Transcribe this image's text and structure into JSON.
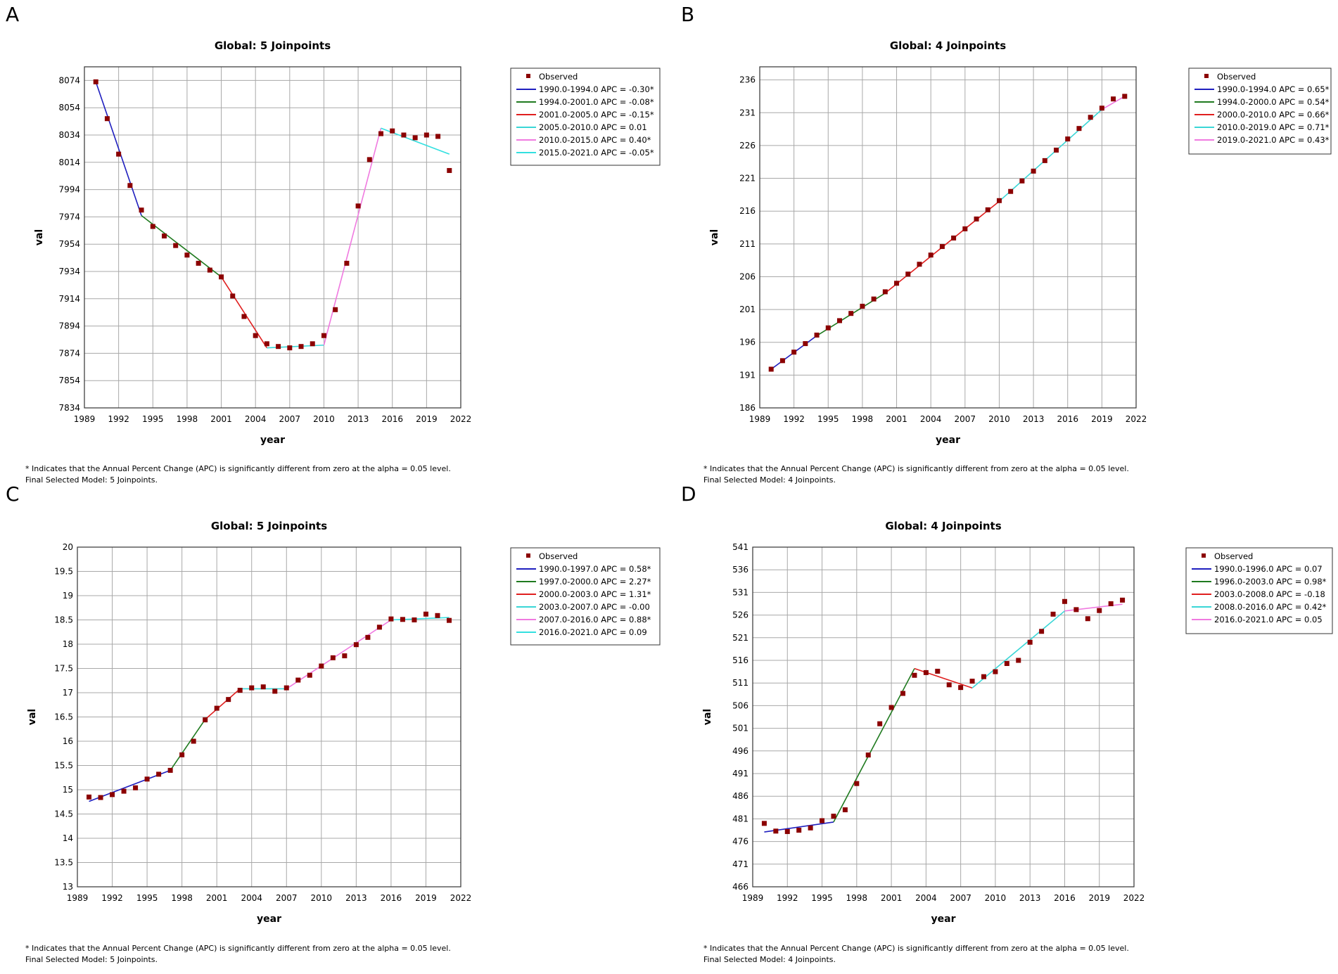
{
  "footnote": {
    "line1": "* Indicates that the Annual Percent Change (APC) is significantly different from zero at the alpha = 0.05 level.",
    "line1_short": "* Indicates that the Annual Percent Change (APC) is significantly different from zero at the alpha = 0.05 level."
  },
  "colors": {
    "observed": "#8b0000",
    "seg1": "#1f1fbf",
    "seg2": "#1f7a1f",
    "seg3": "#e01f1f",
    "seg4": "#3ad6d6",
    "seg5": "#f07ae0",
    "seg6": "#33e0e0",
    "grid": "#a8a8a8",
    "frame": "#333333"
  },
  "chart_data": [
    {
      "panel": "A",
      "type": "line",
      "title": "Global: 5 Joinpoints",
      "xlabel": "year",
      "ylabel": "val",
      "xlim": [
        1989,
        2022
      ],
      "xticks": [
        1989,
        1992,
        1995,
        1998,
        2001,
        2004,
        2007,
        2010,
        2013,
        2016,
        2019,
        2022
      ],
      "ylim": [
        7834,
        8084
      ],
      "yticks": [
        7834,
        7854,
        7874,
        7894,
        7914,
        7934,
        7954,
        7974,
        7994,
        8014,
        8034,
        8054,
        8074
      ],
      "ytick_labels": [
        "7834",
        "7854",
        "7874",
        "7894",
        "7914",
        "7934",
        "7954",
        "7974",
        "7994",
        "8014",
        "8034",
        "8054",
        "8074"
      ],
      "legend_observed": "Observed",
      "legend": [
        "1990.0-1994.0 APC  =  -0.30*",
        "1994.0-2001.0 APC  =  -0.08*",
        "2001.0-2005.0 APC  =  -0.15*",
        "2005.0-2010.0 APC  =  0.01",
        "2010.0-2015.0 APC  =  0.40*",
        "2015.0-2021.0 APC  =  -0.05*"
      ],
      "years": [
        1990,
        1991,
        1992,
        1993,
        1994,
        1995,
        1996,
        1997,
        1998,
        1999,
        2000,
        2001,
        2002,
        2003,
        2004,
        2005,
        2006,
        2007,
        2008,
        2009,
        2010,
        2011,
        2012,
        2013,
        2014,
        2015,
        2016,
        2017,
        2018,
        2019,
        2020,
        2021
      ],
      "observed": [
        8073,
        8046,
        8020,
        7997,
        7979,
        7967,
        7960,
        7953,
        7946,
        7940,
        7935,
        7930,
        7916,
        7901,
        7887,
        7881,
        7879,
        7878,
        7879,
        7881,
        7887,
        7906,
        7940,
        7982,
        8016,
        8035,
        8037,
        8034,
        8032,
        8034,
        8033,
        8008
      ],
      "segments": [
        [
          [
            1990,
            8073
          ],
          [
            1994,
            7975
          ]
        ],
        [
          [
            1994,
            7975
          ],
          [
            2001,
            7930
          ]
        ],
        [
          [
            2001,
            7930
          ],
          [
            2005,
            7878
          ]
        ],
        [
          [
            2005,
            7878
          ],
          [
            2010,
            7880
          ]
        ],
        [
          [
            2010,
            7880
          ],
          [
            2015,
            8039
          ]
        ],
        [
          [
            2015,
            8039
          ],
          [
            2021,
            8020
          ]
        ]
      ],
      "footnote_model": "Final Selected Model: 5 Joinpoints."
    },
    {
      "panel": "B",
      "type": "line",
      "title": "Global: 4 Joinpoints",
      "xlabel": "year",
      "ylabel": "val",
      "xlim": [
        1989,
        2022
      ],
      "xticks": [
        1989,
        1992,
        1995,
        1998,
        2001,
        2004,
        2007,
        2010,
        2013,
        2016,
        2019,
        2022
      ],
      "ylim": [
        186,
        238
      ],
      "yticks": [
        186,
        191,
        196,
        201,
        206,
        211,
        216,
        221,
        226,
        231,
        236
      ],
      "ytick_labels": [
        "186",
        "191",
        "196",
        "201",
        "206",
        "211",
        "216",
        "221",
        "226",
        "231",
        "236"
      ],
      "legend_observed": "Observed",
      "legend": [
        "1990.0-1994.0 APC  =  0.65*",
        "1994.0-2000.0 APC  =  0.54*",
        "2000.0-2010.0 APC  =  0.66*",
        "2010.0-2019.0 APC  =  0.71*",
        "2019.0-2021.0 APC  =  0.43*"
      ],
      "years": [
        1990,
        1991,
        1992,
        1993,
        1994,
        1995,
        1996,
        1997,
        1998,
        1999,
        2000,
        2001,
        2002,
        2003,
        2004,
        2005,
        2006,
        2007,
        2008,
        2009,
        2010,
        2011,
        2012,
        2013,
        2014,
        2015,
        2016,
        2017,
        2018,
        2019,
        2020,
        2021
      ],
      "observed": [
        191.9,
        193.2,
        194.5,
        195.8,
        197.1,
        198.2,
        199.3,
        200.4,
        201.5,
        202.6,
        203.7,
        205.0,
        206.4,
        207.9,
        209.3,
        210.6,
        211.9,
        213.3,
        214.8,
        216.2,
        217.6,
        219.0,
        220.6,
        222.1,
        223.7,
        225.3,
        227.0,
        228.6,
        230.3,
        231.7,
        233.1,
        233.5
      ],
      "segments": [
        [
          [
            1990,
            191.9
          ],
          [
            1994,
            197.0
          ]
        ],
        [
          [
            1994,
            197.0
          ],
          [
            2000,
            203.5
          ]
        ],
        [
          [
            2000,
            203.5
          ],
          [
            2010,
            217.5
          ]
        ],
        [
          [
            2010,
            217.5
          ],
          [
            2019,
            231.5
          ]
        ],
        [
          [
            2019,
            231.5
          ],
          [
            2021,
            233.5
          ]
        ]
      ],
      "footnote_model": "Final Selected Model: 4 Joinpoints."
    },
    {
      "panel": "C",
      "type": "line",
      "title": "Global: 5 Joinpoints",
      "xlabel": "year",
      "ylabel": "val",
      "xlim": [
        1989,
        2022
      ],
      "xticks": [
        1989,
        1992,
        1995,
        1998,
        2001,
        2004,
        2007,
        2010,
        2013,
        2016,
        2019,
        2022
      ],
      "ylim": [
        13,
        20
      ],
      "yticks": [
        13,
        13.5,
        14,
        14.5,
        15,
        15.5,
        16,
        16.5,
        17,
        17.5,
        18,
        18.5,
        19,
        19.5,
        20
      ],
      "ytick_labels": [
        "13",
        "13.5",
        "14",
        "14.5",
        "15",
        "15.5",
        "16",
        "16.5",
        "17",
        "17.5",
        "18",
        "18.5",
        "19",
        "19.5",
        "20"
      ],
      "legend_observed": "Observed",
      "legend": [
        "1990.0-1997.0 APC  =  0.58*",
        "1997.0-2000.0 APC  =  2.27*",
        "2000.0-2003.0 APC  =  1.31*",
        "2003.0-2007.0 APC  =  -0.00",
        "2007.0-2016.0 APC  =  0.88*",
        "2016.0-2021.0 APC  =  0.09"
      ],
      "years": [
        1990,
        1991,
        1992,
        1993,
        1994,
        1995,
        1996,
        1997,
        1998,
        1999,
        2000,
        2001,
        2002,
        2003,
        2004,
        2005,
        2006,
        2007,
        2008,
        2009,
        2010,
        2011,
        2012,
        2013,
        2014,
        2015,
        2016,
        2017,
        2018,
        2019,
        2020,
        2021
      ],
      "observed": [
        14.85,
        14.84,
        14.9,
        14.97,
        15.04,
        15.22,
        15.32,
        15.4,
        15.72,
        16.0,
        16.44,
        16.68,
        16.86,
        17.05,
        17.1,
        17.12,
        17.03,
        17.1,
        17.26,
        17.36,
        17.55,
        17.72,
        17.76,
        17.99,
        18.14,
        18.35,
        18.52,
        18.51,
        18.5,
        18.62,
        18.59,
        18.49
      ],
      "segments": [
        [
          [
            1990,
            14.76
          ],
          [
            1997,
            15.4
          ]
        ],
        [
          [
            1997,
            15.4
          ],
          [
            2000,
            16.45
          ]
        ],
        [
          [
            2000,
            16.45
          ],
          [
            2003,
            17.08
          ]
        ],
        [
          [
            2003,
            17.08
          ],
          [
            2007,
            17.08
          ]
        ],
        [
          [
            2007,
            17.08
          ],
          [
            2016,
            18.5
          ]
        ],
        [
          [
            2016,
            18.5
          ],
          [
            2021,
            18.55
          ]
        ]
      ],
      "footnote_model": "Final Selected Model: 5 Joinpoints."
    },
    {
      "panel": "D",
      "type": "line",
      "title": "Global: 4 Joinpoints",
      "xlabel": "year",
      "ylabel": "val",
      "xlim": [
        1989,
        2022
      ],
      "xticks": [
        1989,
        1992,
        1995,
        1998,
        2001,
        2004,
        2007,
        2010,
        2013,
        2016,
        2019,
        2022
      ],
      "ylim": [
        466,
        541
      ],
      "yticks": [
        466,
        471,
        476,
        481,
        486,
        491,
        496,
        501,
        506,
        511,
        516,
        521,
        526,
        531,
        536,
        541
      ],
      "ytick_labels": [
        "466",
        "471",
        "476",
        "481",
        "486",
        "491",
        "496",
        "501",
        "506",
        "511",
        "516",
        "521",
        "526",
        "531",
        "536",
        "541"
      ],
      "legend_observed": "Observed",
      "legend": [
        "1990.0-1996.0 APC  =  0.07",
        "1996.0-2003.0 APC  =  0.98*",
        "2003.0-2008.0 APC  =  -0.18",
        "2008.0-2016.0 APC  =  0.42*",
        "2016.0-2021.0 APC  =  0.05"
      ],
      "years": [
        1990,
        1991,
        1992,
        1993,
        1994,
        1995,
        1996,
        1997,
        1998,
        1999,
        2000,
        2001,
        2002,
        2003,
        2004,
        2005,
        2006,
        2007,
        2008,
        2009,
        2010,
        2011,
        2012,
        2013,
        2014,
        2015,
        2016,
        2017,
        2018,
        2019,
        2020,
        2021
      ],
      "observed": [
        480.0,
        478.3,
        478.2,
        478.5,
        479.0,
        480.6,
        481.6,
        483.0,
        488.8,
        495.1,
        502.0,
        505.6,
        508.7,
        512.7,
        513.3,
        513.6,
        510.6,
        510.0,
        511.4,
        512.4,
        513.5,
        515.3,
        516.0,
        520.0,
        522.4,
        526.2,
        529.0,
        527.2,
        525.2,
        527.0,
        528.5,
        529.3
      ],
      "segments": [
        [
          [
            1990,
            478.1
          ],
          [
            1996,
            480.3
          ]
        ],
        [
          [
            1996,
            480.3
          ],
          [
            2003,
            514.2
          ]
        ],
        [
          [
            2003,
            514.2
          ],
          [
            2008,
            509.9
          ]
        ],
        [
          [
            2008,
            509.9
          ],
          [
            2016,
            526.9
          ]
        ],
        [
          [
            2016,
            526.9
          ],
          [
            2021,
            528.4
          ]
        ]
      ],
      "footnote_model": "Final Selected Model: 4 Joinpoints."
    }
  ],
  "panels": [
    "A",
    "B",
    "C",
    "D"
  ]
}
